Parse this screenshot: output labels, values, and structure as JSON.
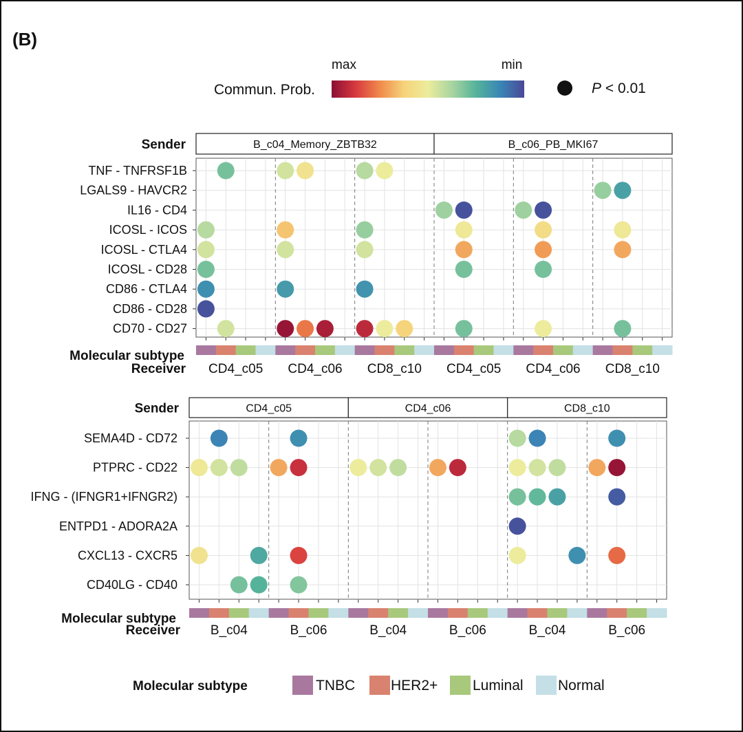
{
  "panel_label": "(B)",
  "colorbar": {
    "title": "Commun. Prob.",
    "max_label": "max",
    "min_label": "min",
    "colors": [
      "#8a0e34",
      "#d7393f",
      "#f08a4b",
      "#f6d37a",
      "#ecec9c",
      "#a8d5a0",
      "#55b39a",
      "#3a86b6",
      "#4a4898"
    ]
  },
  "pvalue_legend": {
    "symbol": "P",
    "text": " < 0.01"
  },
  "axis_titles": {
    "sender": "Sender",
    "subtype": "Molecular subtype",
    "receiver": "Receiver"
  },
  "subtype_legend": {
    "title": "Molecular subtype",
    "items": [
      {
        "name": "TNBC",
        "color": "#a9789f"
      },
      {
        "name": "HER2+",
        "color": "#d9826f"
      },
      {
        "name": "Luminal",
        "color": "#a8c87c"
      },
      {
        "name": "Normal",
        "color": "#c4dfe6"
      }
    ]
  },
  "chart_data": [
    {
      "type": "dot-matrix",
      "value_scale": "Commun. Prob., 0 = min (dark blue) to 1 = max (dark red)",
      "senders": [
        "B_c04_Memory_ZBTB32",
        "B_c06_PB_MKI67"
      ],
      "receivers": [
        "CD4_c05",
        "CD4_c06",
        "CD8_c10",
        "CD4_c05",
        "CD4_c06",
        "CD8_c10"
      ],
      "subtypes": [
        "TNBC",
        "HER2+",
        "Luminal",
        "Normal"
      ],
      "pairs": [
        "TNF - TNFRSF1B",
        "LGALS9 - HAVCR2",
        "IL16 - CD4",
        "ICOSL - ICOS",
        "ICOSL - CTLA4",
        "ICOSL - CD28",
        "CD86 - CTLA4",
        "CD86 - CD28",
        "CD70 - CD27"
      ],
      "points": [
        {
          "pair": 0,
          "col": 1,
          "v": 0.3
        },
        {
          "pair": 0,
          "col": 4,
          "v": 0.45
        },
        {
          "pair": 0,
          "col": 5,
          "v": 0.55
        },
        {
          "pair": 0,
          "col": 8,
          "v": 0.4
        },
        {
          "pair": 0,
          "col": 9,
          "v": 0.5
        },
        {
          "pair": 1,
          "col": 20,
          "v": 0.35
        },
        {
          "pair": 1,
          "col": 21,
          "v": 0.2
        },
        {
          "pair": 2,
          "col": 12,
          "v": 0.36
        },
        {
          "pair": 2,
          "col": 13,
          "v": 0.02
        },
        {
          "pair": 2,
          "col": 16,
          "v": 0.36
        },
        {
          "pair": 2,
          "col": 17,
          "v": 0.02
        },
        {
          "pair": 3,
          "col": 0,
          "v": 0.4
        },
        {
          "pair": 3,
          "col": 4,
          "v": 0.65
        },
        {
          "pair": 3,
          "col": 8,
          "v": 0.35
        },
        {
          "pair": 3,
          "col": 13,
          "v": 0.52
        },
        {
          "pair": 3,
          "col": 17,
          "v": 0.58
        },
        {
          "pair": 3,
          "col": 21,
          "v": 0.52
        },
        {
          "pair": 4,
          "col": 0,
          "v": 0.45
        },
        {
          "pair": 4,
          "col": 4,
          "v": 0.45
        },
        {
          "pair": 4,
          "col": 8,
          "v": 0.45
        },
        {
          "pair": 4,
          "col": 13,
          "v": 0.7
        },
        {
          "pair": 4,
          "col": 17,
          "v": 0.72
        },
        {
          "pair": 4,
          "col": 21,
          "v": 0.7
        },
        {
          "pair": 5,
          "col": 0,
          "v": 0.3
        },
        {
          "pair": 5,
          "col": 13,
          "v": 0.3
        },
        {
          "pair": 5,
          "col": 17,
          "v": 0.3
        },
        {
          "pair": 6,
          "col": 0,
          "v": 0.15
        },
        {
          "pair": 6,
          "col": 4,
          "v": 0.18
        },
        {
          "pair": 6,
          "col": 8,
          "v": 0.16
        },
        {
          "pair": 7,
          "col": 0,
          "v": 0.02
        },
        {
          "pair": 8,
          "col": 1,
          "v": 0.45
        },
        {
          "pair": 8,
          "col": 4,
          "v": 0.98
        },
        {
          "pair": 8,
          "col": 5,
          "v": 0.78
        },
        {
          "pair": 8,
          "col": 6,
          "v": 0.95
        },
        {
          "pair": 8,
          "col": 8,
          "v": 0.92
        },
        {
          "pair": 8,
          "col": 9,
          "v": 0.5
        },
        {
          "pair": 8,
          "col": 10,
          "v": 0.62
        },
        {
          "pair": 8,
          "col": 13,
          "v": 0.3
        },
        {
          "pair": 8,
          "col": 17,
          "v": 0.5
        },
        {
          "pair": 8,
          "col": 21,
          "v": 0.3
        }
      ]
    },
    {
      "type": "dot-matrix",
      "value_scale": "Commun. Prob., 0 = min (dark blue) to 1 = max (dark red)",
      "senders": [
        "CD4_c05",
        "CD4_c06",
        "CD8_c10"
      ],
      "receivers": [
        "B_c04",
        "B_c06",
        "B_c04",
        "B_c06",
        "B_c04",
        "B_c06"
      ],
      "subtypes": [
        "TNBC",
        "HER2+",
        "Luminal",
        "Normal"
      ],
      "pairs": [
        "SEMA4D - CD72",
        "PTPRC - CD22",
        "IFNG - (IFNGR1+IFNGR2)",
        "ENTPD1 - ADORA2A",
        "CXCL13 - CXCR5",
        "CD40LG - CD40"
      ],
      "points": [
        {
          "pair": 0,
          "col": 1,
          "v": 0.12
        },
        {
          "pair": 0,
          "col": 5,
          "v": 0.15
        },
        {
          "pair": 0,
          "col": 16,
          "v": 0.4
        },
        {
          "pair": 0,
          "col": 17,
          "v": 0.12
        },
        {
          "pair": 0,
          "col": 21,
          "v": 0.15
        },
        {
          "pair": 1,
          "col": 0,
          "v": 0.52
        },
        {
          "pair": 1,
          "col": 1,
          "v": 0.45
        },
        {
          "pair": 1,
          "col": 2,
          "v": 0.42
        },
        {
          "pair": 1,
          "col": 4,
          "v": 0.7
        },
        {
          "pair": 1,
          "col": 5,
          "v": 0.9
        },
        {
          "pair": 1,
          "col": 8,
          "v": 0.5
        },
        {
          "pair": 1,
          "col": 9,
          "v": 0.45
        },
        {
          "pair": 1,
          "col": 10,
          "v": 0.42
        },
        {
          "pair": 1,
          "col": 12,
          "v": 0.7
        },
        {
          "pair": 1,
          "col": 13,
          "v": 0.92
        },
        {
          "pair": 1,
          "col": 16,
          "v": 0.5
        },
        {
          "pair": 1,
          "col": 17,
          "v": 0.45
        },
        {
          "pair": 1,
          "col": 18,
          "v": 0.42
        },
        {
          "pair": 1,
          "col": 20,
          "v": 0.7
        },
        {
          "pair": 1,
          "col": 21,
          "v": 0.98
        },
        {
          "pair": 2,
          "col": 16,
          "v": 0.3
        },
        {
          "pair": 2,
          "col": 17,
          "v": 0.27
        },
        {
          "pair": 2,
          "col": 18,
          "v": 0.2
        },
        {
          "pair": 2,
          "col": 21,
          "v": 0.04
        },
        {
          "pair": 3,
          "col": 16,
          "v": 0.02
        },
        {
          "pair": 4,
          "col": 0,
          "v": 0.55
        },
        {
          "pair": 4,
          "col": 3,
          "v": 0.22
        },
        {
          "pair": 4,
          "col": 5,
          "v": 0.86
        },
        {
          "pair": 4,
          "col": 16,
          "v": 0.5
        },
        {
          "pair": 4,
          "col": 19,
          "v": 0.15
        },
        {
          "pair": 4,
          "col": 21,
          "v": 0.8
        },
        {
          "pair": 5,
          "col": 2,
          "v": 0.3
        },
        {
          "pair": 5,
          "col": 3,
          "v": 0.25
        },
        {
          "pair": 5,
          "col": 5,
          "v": 0.32
        }
      ]
    }
  ]
}
